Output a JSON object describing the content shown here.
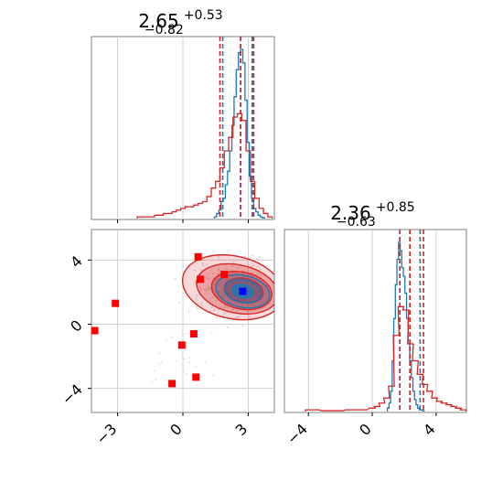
{
  "chart_data": [
    {
      "type": "histogram",
      "panel": "marginal-param-1",
      "title": {
        "median": "2.65",
        "plus": "+0.53",
        "minus": "−0.82"
      },
      "xlim": [
        -4.2,
        4.2
      ],
      "x_ticks": [
        -3,
        0,
        3
      ],
      "grid": true,
      "series": [
        {
          "color": "#1f77b4",
          "bins_x": [
            1.5,
            1.6,
            1.7,
            1.8,
            1.9,
            2.0,
            2.1,
            2.2,
            2.3,
            2.4,
            2.5,
            2.6,
            2.7,
            2.8,
            2.9,
            3.0,
            3.1,
            3.2,
            3.3,
            3.4,
            3.5,
            3.6,
            3.7
          ],
          "heights": [
            0.01,
            0.03,
            0.05,
            0.1,
            0.12,
            0.2,
            0.28,
            0.4,
            0.55,
            0.72,
            0.88,
            0.98,
            1.0,
            0.92,
            0.7,
            0.45,
            0.25,
            0.12,
            0.06,
            0.04,
            0.02,
            0.01,
            0.005
          ],
          "quantile_lines": [
            1.83,
            2.65,
            3.18
          ]
        },
        {
          "color": "#d62728",
          "bins_x": [
            -2.0,
            -1.8,
            -1.6,
            -1.4,
            -1.2,
            -1.0,
            -0.8,
            -0.6,
            -0.4,
            -0.2,
            0.0,
            0.2,
            0.4,
            0.6,
            0.8,
            1.0,
            1.2,
            1.4,
            1.6,
            1.8,
            2.0,
            2.2,
            2.4,
            2.6,
            2.8,
            3.0,
            3.2,
            3.4,
            3.6,
            3.8,
            4.0
          ],
          "heights": [
            0.01,
            0.01,
            0.01,
            0.01,
            0.02,
            0.02,
            0.03,
            0.03,
            0.04,
            0.05,
            0.06,
            0.07,
            0.07,
            0.08,
            0.09,
            0.1,
            0.13,
            0.18,
            0.22,
            0.3,
            0.4,
            0.48,
            0.6,
            0.62,
            0.58,
            0.4,
            0.22,
            0.12,
            0.06,
            0.03,
            0.01
          ],
          "quantile_lines": [
            1.7,
            2.65,
            3.25
          ]
        }
      ]
    },
    {
      "type": "contour-scatter",
      "panel": "joint",
      "xlim": [
        -4.2,
        4.2
      ],
      "ylim": [
        -5.5,
        5.9
      ],
      "x_ticks": [
        -3,
        0,
        3
      ],
      "y_ticks": [
        -4,
        0,
        4
      ],
      "grid": true,
      "contours": [
        {
          "color": "#d62728",
          "levels": [
            {
              "cx": 2.3,
              "cy": 2.3,
              "rx": 2.35,
              "ry": 1.95
            },
            {
              "cx": 2.5,
              "cy": 2.2,
              "rx": 1.9,
              "ry": 1.5
            },
            {
              "cx": 2.7,
              "cy": 2.1,
              "rx": 1.4,
              "ry": 1.15
            },
            {
              "cx": 2.8,
              "cy": 2.1,
              "rx": 0.9,
              "ry": 0.75
            }
          ]
        },
        {
          "color": "#1f77b4",
          "levels": [
            {
              "cx": 2.75,
              "cy": 2.05,
              "rx": 1.25,
              "ry": 1.0
            },
            {
              "cx": 2.75,
              "cy": 2.05,
              "rx": 0.85,
              "ry": 0.7
            },
            {
              "cx": 2.75,
              "cy": 2.05,
              "rx": 0.5,
              "ry": 0.42
            }
          ]
        }
      ],
      "markers": [
        {
          "x": 0.7,
          "y": 4.2,
          "color": "#ff0000"
        },
        {
          "x": 1.9,
          "y": 3.1,
          "color": "#ff0000"
        },
        {
          "x": 0.8,
          "y": 2.8,
          "color": "#ff0000"
        },
        {
          "x": -3.1,
          "y": 1.3,
          "color": "#ff0000"
        },
        {
          "x": -4.05,
          "y": -0.4,
          "color": "#ff0000"
        },
        {
          "x": 0.5,
          "y": -0.6,
          "color": "#ff0000"
        },
        {
          "x": -0.05,
          "y": -1.3,
          "color": "#ff0000"
        },
        {
          "x": 0.6,
          "y": -3.3,
          "color": "#ff0000"
        },
        {
          "x": -0.5,
          "y": -3.7,
          "color": "#ff0000"
        },
        {
          "x": 2.75,
          "y": 2.05,
          "color": "#0000ff"
        }
      ]
    },
    {
      "type": "histogram",
      "panel": "marginal-param-2",
      "title": {
        "median": "2.36",
        "plus": "+0.85",
        "minus": "−0.63"
      },
      "xlim": [
        -5.5,
        5.9
      ],
      "x_ticks": [
        -4,
        0,
        4
      ],
      "grid": true,
      "series": [
        {
          "color": "#1f77b4",
          "bins_x": [
            1.0,
            1.1,
            1.2,
            1.3,
            1.4,
            1.5,
            1.6,
            1.7,
            1.8,
            1.9,
            2.0,
            2.1,
            2.2,
            2.3,
            2.4,
            2.5,
            2.6,
            2.7,
            2.8,
            2.9,
            3.0,
            3.1,
            3.2
          ],
          "heights": [
            0.02,
            0.05,
            0.12,
            0.3,
            0.55,
            0.75,
            0.9,
            1.0,
            0.95,
            0.85,
            0.8,
            0.7,
            0.55,
            0.4,
            0.3,
            0.2,
            0.12,
            0.07,
            0.04,
            0.02,
            0.01,
            0.01,
            0.005
          ],
          "quantile_lines": [
            1.73,
            2.36,
            3.0
          ]
        },
        {
          "color": "#d62728",
          "bins_x": [
            -4.0,
            -3.5,
            -3.0,
            -2.5,
            -2.0,
            -1.5,
            -1.0,
            -0.5,
            0.0,
            0.3,
            0.6,
            0.9,
            1.2,
            1.5,
            1.8,
            2.1,
            2.4,
            2.7,
            3.0,
            3.3,
            3.6,
            3.9,
            4.2,
            4.5,
            4.8,
            5.1,
            5.4,
            5.7
          ],
          "heights": [
            0.01,
            0.01,
            0.005,
            0.005,
            0.005,
            0.01,
            0.01,
            0.01,
            0.02,
            0.03,
            0.05,
            0.08,
            0.15,
            0.45,
            0.62,
            0.6,
            0.4,
            0.3,
            0.22,
            0.16,
            0.12,
            0.08,
            0.06,
            0.05,
            0.04,
            0.03,
            0.02,
            0.01
          ],
          "quantile_lines": [
            1.73,
            2.36,
            3.21
          ]
        }
      ]
    }
  ]
}
